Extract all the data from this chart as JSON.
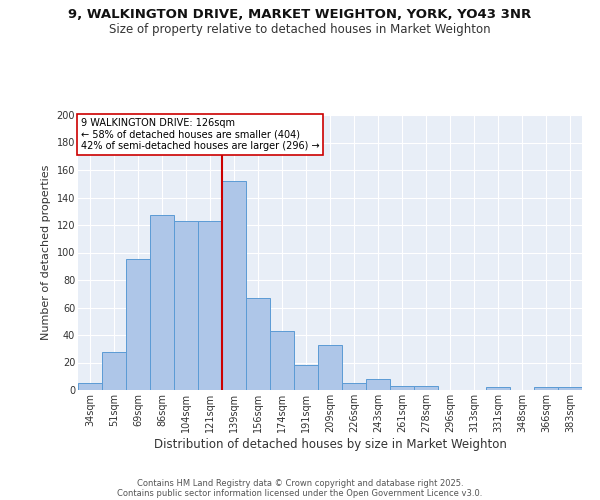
{
  "title1": "9, WALKINGTON DRIVE, MARKET WEIGHTON, YORK, YO43 3NR",
  "title2": "Size of property relative to detached houses in Market Weighton",
  "xlabel": "Distribution of detached houses by size in Market Weighton",
  "ylabel": "Number of detached properties",
  "categories": [
    "34sqm",
    "51sqm",
    "69sqm",
    "86sqm",
    "104sqm",
    "121sqm",
    "139sqm",
    "156sqm",
    "174sqm",
    "191sqm",
    "209sqm",
    "226sqm",
    "243sqm",
    "261sqm",
    "278sqm",
    "296sqm",
    "313sqm",
    "331sqm",
    "348sqm",
    "366sqm",
    "383sqm"
  ],
  "values": [
    5,
    28,
    95,
    127,
    123,
    123,
    152,
    67,
    43,
    18,
    33,
    5,
    8,
    3,
    3,
    0,
    0,
    2,
    0,
    2,
    2
  ],
  "bar_color": "#aec6e8",
  "bar_edge_color": "#5b9bd5",
  "property_line_label": "9 WALKINGTON DRIVE: 126sqm",
  "annotation_line1": "← 58% of detached houses are smaller (404)",
  "annotation_line2": "42% of semi-detached houses are larger (296) →",
  "ref_line_color": "#cc0000",
  "annotation_box_color": "#ffffff",
  "annotation_box_edge": "#cc0000",
  "bg_color": "#e8eef7",
  "grid_color": "#ffffff",
  "ylim": [
    0,
    200
  ],
  "yticks": [
    0,
    20,
    40,
    60,
    80,
    100,
    120,
    140,
    160,
    180,
    200
  ],
  "footer1": "Contains HM Land Registry data © Crown copyright and database right 2025.",
  "footer2": "Contains public sector information licensed under the Open Government Licence v3.0.",
  "title1_fontsize": 9.5,
  "title2_fontsize": 8.5,
  "axis_label_fontsize": 8.5,
  "tick_fontsize": 7,
  "ylabel_fontsize": 8
}
